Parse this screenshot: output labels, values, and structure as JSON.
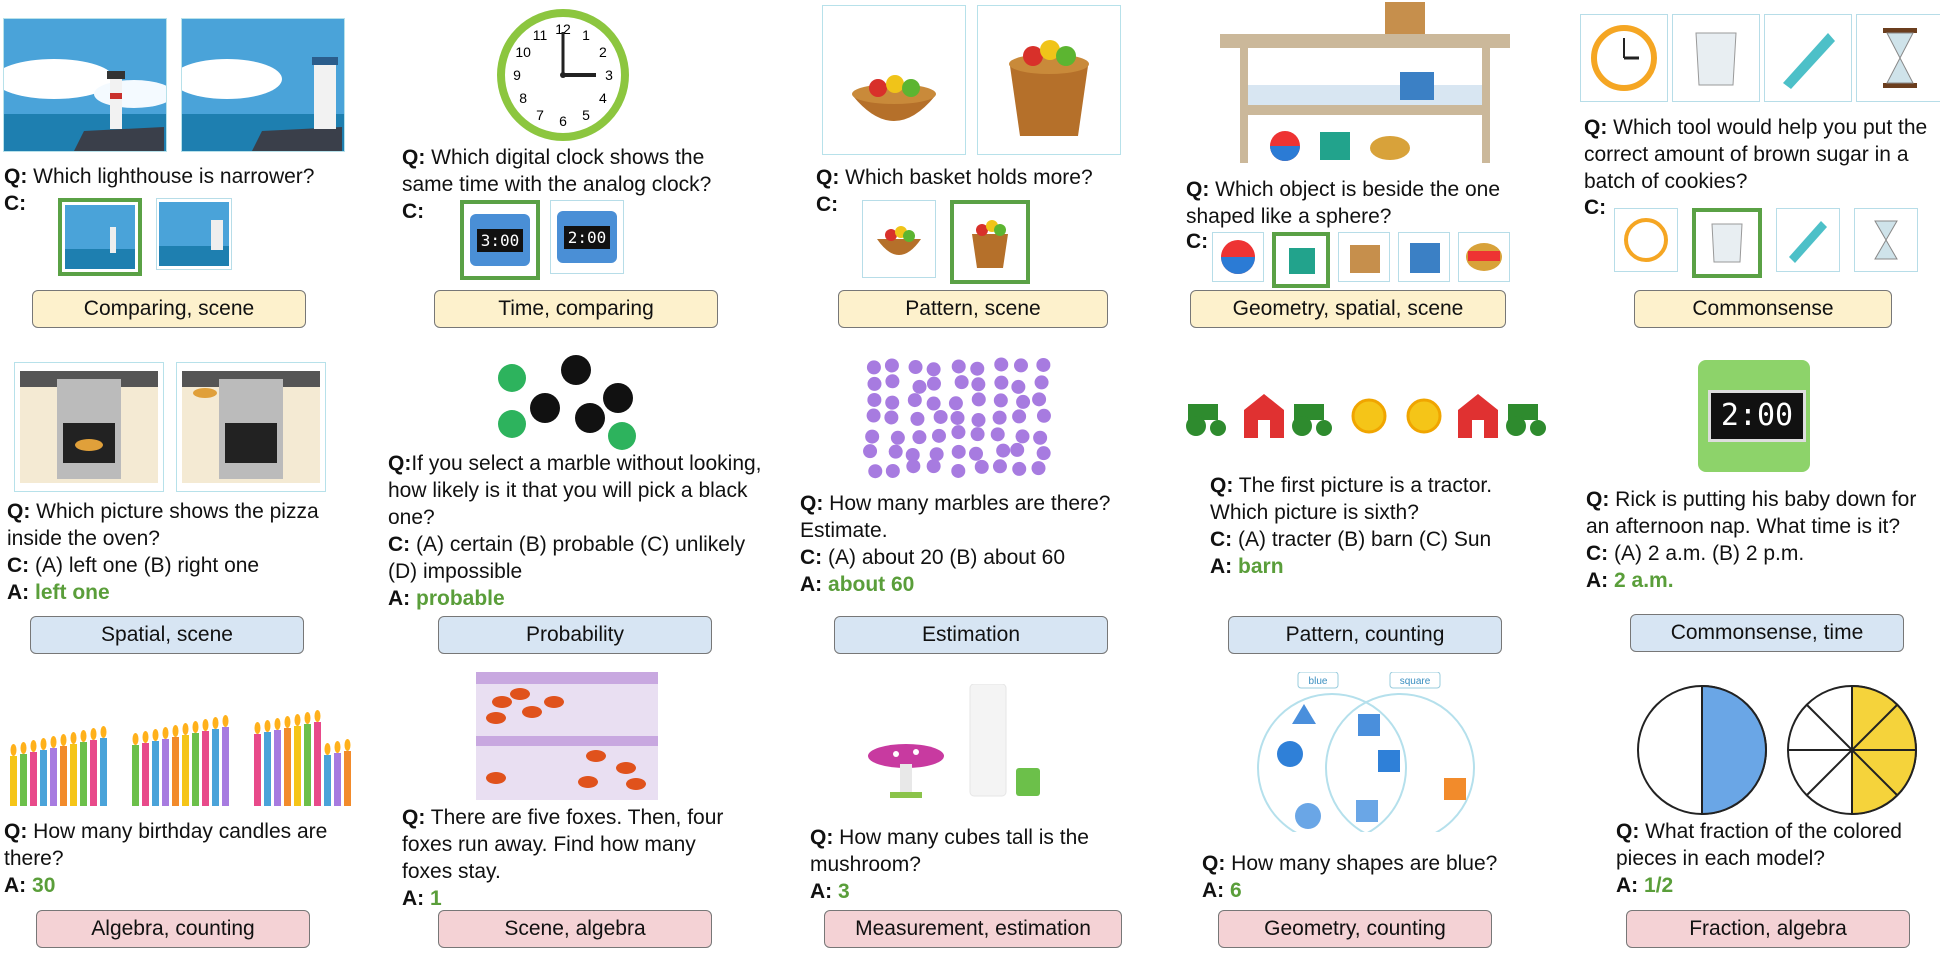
{
  "cells": [
    {
      "id": "c1",
      "q_prefix": "Q:",
      "q": "Which lighthouse is narrower?",
      "c_prefix": "C:",
      "tag": "Comparing, scene"
    },
    {
      "id": "c2",
      "q_prefix": "Q:",
      "q": "Which digital clock shows the same time with the analog clock?",
      "c_prefix": "C:",
      "choices": [
        "3:00",
        "2:00"
      ],
      "tag": "Time, comparing",
      "clock_numbers": [
        "12",
        "1",
        "2",
        "3",
        "4",
        "5",
        "6",
        "7",
        "8",
        "9",
        "10",
        "11"
      ]
    },
    {
      "id": "c3",
      "q_prefix": "Q:",
      "q": "Which basket holds more?",
      "c_prefix": "C:",
      "tag": "Pattern, scene"
    },
    {
      "id": "c4",
      "q_prefix": "Q:",
      "q": "Which object is beside the one shaped like a sphere?",
      "c_prefix": "C:",
      "tag": "Geometry, spatial, scene"
    },
    {
      "id": "c5",
      "q_prefix": "Q:",
      "q": "Which tool would help you put the correct amount of brown sugar in a batch of cookies?",
      "c_prefix": "C:",
      "tag": "Commonsense"
    },
    {
      "id": "c6",
      "q_prefix": "Q:",
      "q": "Which picture shows the pizza inside the oven?",
      "c_prefix": "C:",
      "c": "(A) left one (B) right one",
      "a_prefix": "A:",
      "a": "left one",
      "tag": "Spatial, scene"
    },
    {
      "id": "c7",
      "q_prefix": "Q:",
      "q": "If you select a marble without looking, how likely is it that you will pick a black one?",
      "c_prefix": "C:",
      "c": "(A) certain (B) probable (C) unlikely (D) impossible",
      "a_prefix": "A:",
      "a": "probable",
      "tag": "Probability"
    },
    {
      "id": "c8",
      "q_prefix": "Q:",
      "q": "How many marbles are there? Estimate.",
      "c_prefix": "C:",
      "c": "(A) about 20 (B) about 60",
      "a_prefix": "A:",
      "a": "about 60",
      "tag": "Estimation"
    },
    {
      "id": "c9",
      "q_prefix": "Q:",
      "q": "The first picture is a tractor. Which picture is sixth?",
      "c_prefix": "C:",
      "c": "(A) tracter (B) barn (C) Sun",
      "a_prefix": "A:",
      "a": "barn",
      "tag": "Pattern, counting"
    },
    {
      "id": "c10",
      "q_prefix": "Q:",
      "q": "Rick is putting his baby down for an afternoon nap. What time is it?",
      "c_prefix": "C:",
      "c": "(A) 2 a.m. (B) 2 p.m.",
      "a_prefix": "A:",
      "a": "2 a.m.",
      "tag": "Commonsense, time",
      "clock_display": "2:00"
    },
    {
      "id": "c11",
      "q_prefix": "Q:",
      "q": "How many birthday candles are there?",
      "a_prefix": "A:",
      "a": "30",
      "tag": "Algebra, counting"
    },
    {
      "id": "c12",
      "q_prefix": "Q:",
      "q": "There are five foxes. Then, four foxes run away. Find how many foxes stay.",
      "a_prefix": "A:",
      "a": "1",
      "tag": "Scene, algebra"
    },
    {
      "id": "c13",
      "q_prefix": "Q:",
      "q": "How many cubes tall is the mushroom?",
      "a_prefix": "A:",
      "a": "3",
      "tag": "Measurement, estimation"
    },
    {
      "id": "c14",
      "q_prefix": "Q:",
      "q": "How many shapes are blue?",
      "a_prefix": "A:",
      "a": "6",
      "tag": "Geometry, counting",
      "venn_labels": [
        "blue",
        "square"
      ]
    },
    {
      "id": "c15",
      "q_prefix": "Q:",
      "q": "What fraction of the colored pieces in each model?",
      "a_prefix": "A:",
      "a": "1/2",
      "tag": "Fraction, algebra"
    }
  ],
  "colors": {
    "answer": "#5a9e3a",
    "selected_border": "#5aa145",
    "tag_yellow": "#fdf1cc",
    "tag_blue": "#d7e5f3",
    "tag_pink": "#f4d2d5"
  }
}
